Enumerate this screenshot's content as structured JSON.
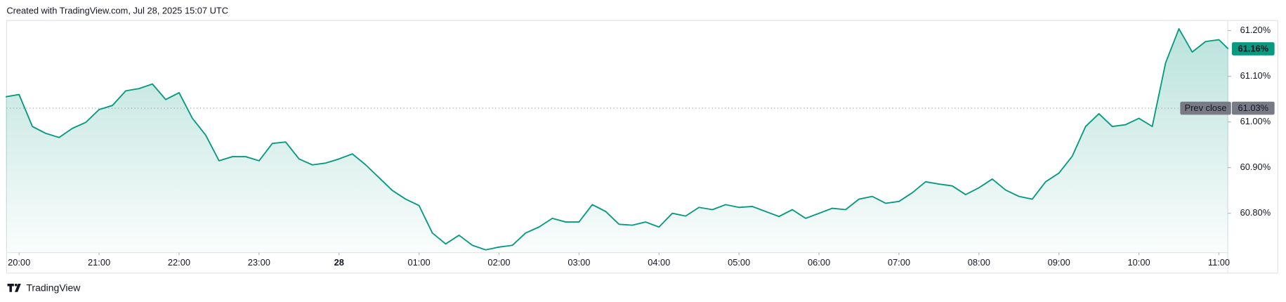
{
  "header": {
    "title": "Created with TradingView.com, Jul 28, 2025 15:07 UTC"
  },
  "footer": {
    "brand": "TradingView"
  },
  "chart_data": {
    "type": "line",
    "x": [
      "19:50",
      "20:00",
      "20:10",
      "20:20",
      "20:30",
      "20:40",
      "20:50",
      "21:00",
      "21:10",
      "21:20",
      "21:30",
      "21:40",
      "21:50",
      "22:00",
      "22:10",
      "22:20",
      "22:30",
      "22:40",
      "22:50",
      "23:00",
      "23:10",
      "23:20",
      "23:30",
      "23:40",
      "23:50",
      "00:00",
      "00:10",
      "00:20",
      "00:30",
      "00:40",
      "00:50",
      "01:00",
      "01:10",
      "01:20",
      "01:30",
      "01:40",
      "01:50",
      "02:00",
      "02:10",
      "02:20",
      "02:30",
      "02:40",
      "02:50",
      "03:00",
      "03:10",
      "03:20",
      "03:30",
      "03:40",
      "03:50",
      "04:00",
      "04:10",
      "04:20",
      "04:30",
      "04:40",
      "04:50",
      "05:00",
      "05:10",
      "05:20",
      "05:30",
      "05:40",
      "05:50",
      "06:00",
      "06:10",
      "06:20",
      "06:30",
      "06:40",
      "06:50",
      "07:00",
      "07:10",
      "07:20",
      "07:30",
      "07:40",
      "07:50",
      "08:00",
      "08:10",
      "08:20",
      "08:30",
      "08:40",
      "08:50",
      "09:00",
      "09:10",
      "09:20",
      "09:30",
      "09:40",
      "09:50",
      "10:00",
      "10:10",
      "10:20",
      "10:30",
      "10:40",
      "10:50",
      "11:00",
      "11:07"
    ],
    "series": [
      {
        "color": "#089981",
        "values": [
          61.055,
          61.06,
          60.99,
          60.975,
          60.966,
          60.986,
          60.999,
          61.027,
          61.036,
          61.068,
          61.073,
          61.083,
          61.049,
          61.064,
          61.008,
          60.971,
          60.915,
          60.924,
          60.924,
          60.915,
          60.953,
          60.956,
          60.919,
          60.906,
          60.91,
          60.919,
          60.93,
          60.906,
          60.878,
          60.85,
          60.831,
          60.817,
          60.757,
          60.733,
          60.752,
          60.73,
          60.72,
          60.726,
          60.73,
          60.757,
          60.77,
          60.789,
          60.781,
          60.781,
          60.819,
          60.804,
          60.776,
          60.774,
          60.781,
          60.77,
          60.8,
          60.794,
          60.813,
          60.808,
          60.819,
          60.813,
          60.815,
          60.804,
          60.793,
          60.808,
          60.789,
          60.8,
          60.811,
          60.808,
          60.831,
          60.837,
          60.822,
          60.826,
          60.845,
          60.869,
          60.864,
          60.86,
          60.841,
          60.856,
          60.875,
          60.851,
          60.837,
          60.831,
          60.869,
          60.888,
          60.925,
          60.99,
          61.018,
          60.99,
          60.994,
          61.008,
          60.99,
          61.129,
          61.204,
          61.153,
          61.176,
          61.18,
          61.16
        ],
        "value_labels": [
          null,
          null,
          null,
          null,
          null,
          null,
          null,
          null,
          null,
          null,
          null,
          null,
          null,
          null,
          null,
          null,
          null,
          null,
          null,
          null,
          null,
          null,
          null,
          null,
          null,
          null,
          null,
          null,
          null,
          null,
          null,
          null,
          null,
          null,
          null,
          null,
          null,
          null,
          null,
          null,
          null,
          null,
          null,
          null,
          null,
          null,
          null,
          null,
          null,
          null,
          null,
          null,
          null,
          null,
          null,
          null,
          null,
          null,
          null,
          null,
          null,
          null,
          null,
          null,
          null,
          null,
          null,
          null,
          null,
          null,
          null,
          null,
          null,
          null,
          null,
          null,
          null,
          null,
          null,
          null,
          null,
          null,
          null,
          null,
          null,
          null,
          null,
          null,
          null,
          null,
          null,
          null,
          "61.16%"
        ]
      }
    ],
    "prev_close": {
      "name": "Prev close",
      "value": 61.03,
      "label": "61.03%"
    },
    "ylim": [
      60.714,
      61.222
    ],
    "yticks": [
      {
        "value": 61.2,
        "label": "61.20%"
      },
      {
        "value": 61.1,
        "label": "61.10%"
      },
      {
        "value": 61.0,
        "label": "61.00%"
      },
      {
        "value": 60.9,
        "label": "60.90%"
      },
      {
        "value": 60.8,
        "label": "60.80%"
      }
    ],
    "xticks": [
      {
        "value": "20:00",
        "label": "20:00"
      },
      {
        "value": "21:00",
        "label": "21:00"
      },
      {
        "value": "22:00",
        "label": "22:00"
      },
      {
        "value": "23:00",
        "label": "23:00"
      },
      {
        "value": "00:00",
        "label": "28"
      },
      {
        "value": "01:00",
        "label": "01:00"
      },
      {
        "value": "02:00",
        "label": "02:00"
      },
      {
        "value": "03:00",
        "label": "03:00"
      },
      {
        "value": "04:00",
        "label": "04:00"
      },
      {
        "value": "05:00",
        "label": "05:00"
      },
      {
        "value": "06:00",
        "label": "06:00"
      },
      {
        "value": "07:00",
        "label": "07:00"
      },
      {
        "value": "08:00",
        "label": "08:00"
      },
      {
        "value": "09:00",
        "label": "09:00"
      },
      {
        "value": "10:00",
        "label": "10:00"
      },
      {
        "value": "11:00",
        "label": "11:00"
      }
    ],
    "grid": false
  }
}
